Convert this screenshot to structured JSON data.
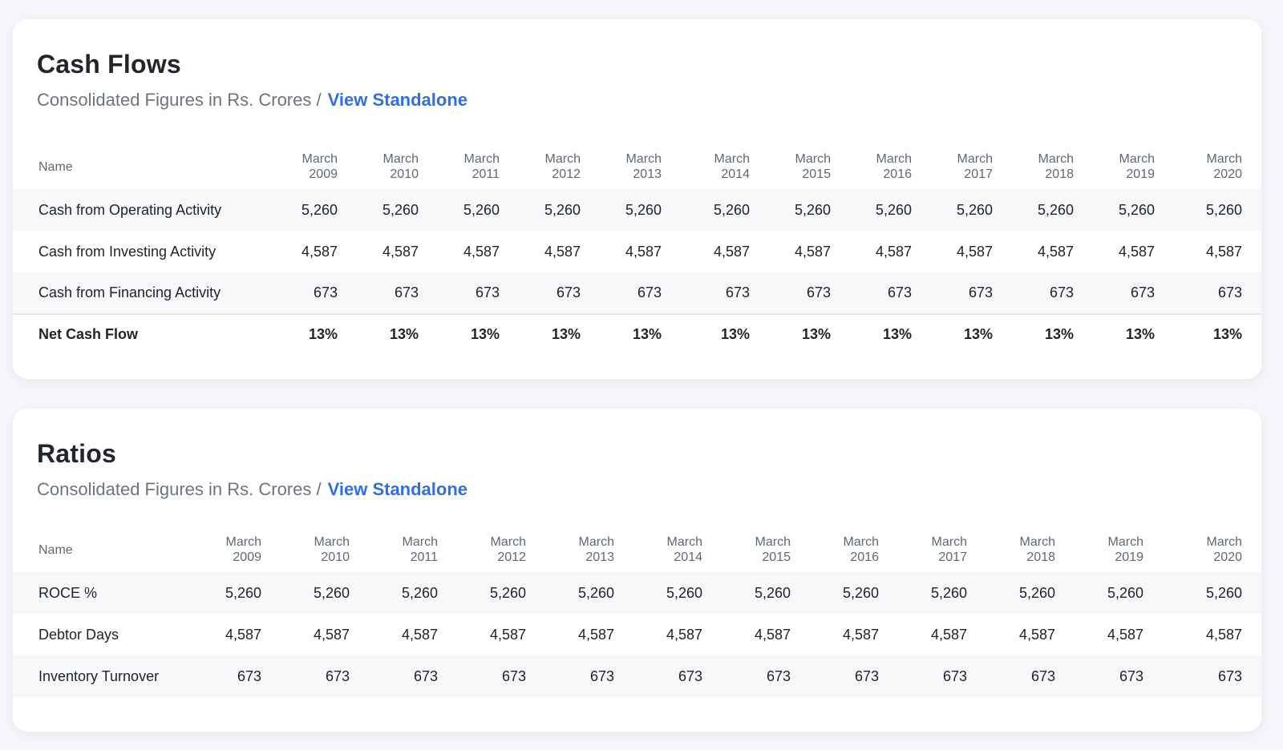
{
  "cash_flows": {
    "title": "Cash Flows",
    "subtitle": "Consolidated Figures in Rs. Crores /",
    "link": "View Standalone",
    "name_header": "Name",
    "columns": [
      {
        "month": "March",
        "year": "2009"
      },
      {
        "month": "March",
        "year": "2010"
      },
      {
        "month": "March",
        "year": "2011"
      },
      {
        "month": "March",
        "year": "2012"
      },
      {
        "month": "March",
        "year": "2013"
      },
      {
        "month": "March",
        "year": "2014"
      },
      {
        "month": "March",
        "year": "2015"
      },
      {
        "month": "March",
        "year": "2016"
      },
      {
        "month": "March",
        "year": "2017"
      },
      {
        "month": "March",
        "year": "2018"
      },
      {
        "month": "March",
        "year": "2019"
      },
      {
        "month": "March",
        "year": "2020"
      }
    ],
    "rows": [
      {
        "name": "Cash from Operating Activity",
        "values": [
          "5,260",
          "5,260",
          "5,260",
          "5,260",
          "5,260",
          "5,260",
          "5,260",
          "5,260",
          "5,260",
          "5,260",
          "5,260",
          "5,260"
        ],
        "shaded": true
      },
      {
        "name": "Cash from Investing Activity",
        "values": [
          "4,587",
          "4,587",
          "4,587",
          "4,587",
          "4,587",
          "4,587",
          "4,587",
          "4,587",
          "4,587",
          "4,587",
          "4,587",
          "4,587"
        ],
        "shaded": false
      },
      {
        "name": "Cash from Financing Activity",
        "values": [
          "673",
          "673",
          "673",
          "673",
          "673",
          "673",
          "673",
          "673",
          "673",
          "673",
          "673",
          "673"
        ],
        "shaded": true
      },
      {
        "name": "Net Cash Flow",
        "values": [
          "13%",
          "13%",
          "13%",
          "13%",
          "13%",
          "13%",
          "13%",
          "13%",
          "13%",
          "13%",
          "13%",
          "13%"
        ],
        "shaded": false,
        "total": true
      }
    ]
  },
  "ratios": {
    "title": "Ratios",
    "subtitle": "Consolidated Figures in Rs. Crores /",
    "link": "View Standalone",
    "name_header": "Name",
    "columns": [
      {
        "month": "March",
        "year": "2009"
      },
      {
        "month": "March",
        "year": "2010"
      },
      {
        "month": "March",
        "year": "2011"
      },
      {
        "month": "March",
        "year": "2012"
      },
      {
        "month": "March",
        "year": "2013"
      },
      {
        "month": "March",
        "year": "2014"
      },
      {
        "month": "March",
        "year": "2015"
      },
      {
        "month": "March",
        "year": "2016"
      },
      {
        "month": "March",
        "year": "2017"
      },
      {
        "month": "March",
        "year": "2018"
      },
      {
        "month": "March",
        "year": "2019"
      },
      {
        "month": "March",
        "year": "2020"
      }
    ],
    "rows": [
      {
        "name": "ROCE %",
        "values": [
          "5,260",
          "5,260",
          "5,260",
          "5,260",
          "5,260",
          "5,260",
          "5,260",
          "5,260",
          "5,260",
          "5,260",
          "5,260",
          "5,260"
        ],
        "shaded": true
      },
      {
        "name": "Debtor Days",
        "values": [
          "4,587",
          "4,587",
          "4,587",
          "4,587",
          "4,587",
          "4,587",
          "4,587",
          "4,587",
          "4,587",
          "4,587",
          "4,587",
          "4,587"
        ],
        "shaded": false
      },
      {
        "name": "Inventory Turnover",
        "values": [
          "673",
          "673",
          "673",
          "673",
          "673",
          "673",
          "673",
          "673",
          "673",
          "673",
          "673",
          "673"
        ],
        "shaded": true
      }
    ]
  }
}
